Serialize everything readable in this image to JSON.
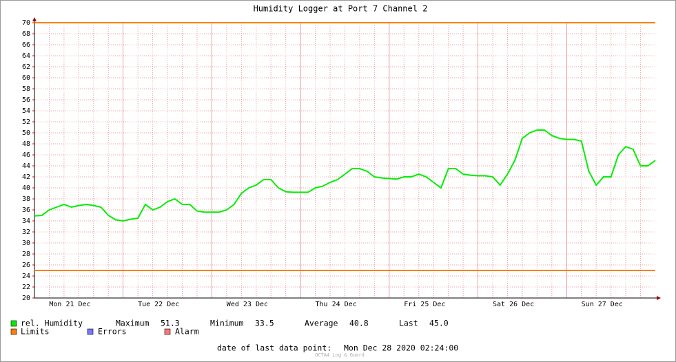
{
  "chart_data": {
    "type": "line",
    "title": "Humidity Logger at Port 7 Channel 2",
    "xlim": [
      0,
      168
    ],
    "xticks": [
      {
        "value": 9.6,
        "label": "Mon 21 Dec"
      },
      {
        "value": 33.6,
        "label": "Tue 22 Dec"
      },
      {
        "value": 57.6,
        "label": "Wed 23 Dec"
      },
      {
        "value": 81.6,
        "label": "Thu 24 Dec"
      },
      {
        "value": 105.6,
        "label": "Fri 25 Dec"
      },
      {
        "value": 129.6,
        "label": "Sat 26 Dec"
      },
      {
        "value": 153.6,
        "label": "Sun 27 Dec"
      }
    ],
    "ylim": [
      20,
      70
    ],
    "yticks": [
      20,
      22,
      24,
      26,
      28,
      30,
      32,
      34,
      36,
      38,
      40,
      42,
      44,
      46,
      48,
      50,
      52,
      54,
      56,
      58,
      60,
      62,
      64,
      66,
      68,
      70
    ],
    "grid": true,
    "series": [
      {
        "name": "rel. Humidity",
        "color": "#00ee00",
        "x": [
          0,
          2,
          4,
          6,
          8,
          10,
          12,
          14,
          16,
          18,
          20,
          22,
          24,
          26,
          28,
          30,
          32,
          34,
          36,
          38,
          40,
          42,
          44,
          46,
          48,
          50,
          52,
          54,
          56,
          58,
          60,
          62,
          64,
          66,
          68,
          70,
          72,
          74,
          76,
          78,
          80,
          82,
          84,
          86,
          88,
          90,
          92,
          94,
          96,
          98,
          100,
          102,
          104,
          106,
          108,
          110,
          112,
          114,
          116,
          118,
          120,
          122,
          124,
          126,
          128,
          130,
          132,
          134,
          136,
          138,
          140,
          142,
          144,
          146,
          148,
          150,
          152,
          154,
          156,
          158,
          160,
          162,
          164,
          166,
          168
        ],
        "values": [
          34.9,
          35.0,
          36.0,
          36.5,
          37.0,
          36.5,
          36.8,
          37.0,
          36.8,
          36.5,
          35.0,
          34.2,
          34.0,
          34.3,
          34.5,
          37.0,
          36.0,
          36.5,
          37.5,
          38.0,
          37.0,
          37.0,
          35.8,
          35.6,
          35.6,
          35.6,
          36.0,
          37.0,
          39.0,
          40.0,
          40.5,
          41.5,
          41.5,
          40.0,
          39.3,
          39.2,
          39.2,
          39.2,
          40.0,
          40.3,
          41.0,
          41.5,
          42.5,
          43.5,
          43.5,
          43.0,
          42.0,
          41.8,
          41.7,
          41.6,
          42.0,
          42.0,
          42.5,
          42.0,
          41.0,
          40.0,
          43.5,
          43.5,
          42.5,
          42.3,
          42.2,
          42.2,
          42.0,
          40.5,
          42.5,
          45.0,
          49.0,
          50.0,
          50.5,
          50.5,
          49.5,
          49.0,
          48.8,
          48.8,
          48.5,
          43.0,
          40.5,
          42.0,
          42.0,
          46.0,
          47.5,
          47.0,
          44.0,
          44.0,
          45.0
        ]
      }
    ],
    "limits": {
      "name": "Limits",
      "color": "#ff7f00",
      "values": [
        70,
        25
      ]
    },
    "legend_extra": [
      {
        "name": "Errors",
        "color": "#7777ff"
      },
      {
        "name": "Alarm",
        "color": "#ff7777"
      }
    ],
    "stats": [
      {
        "label": "Maximum",
        "value": 51.3
      },
      {
        "label": "Minimum",
        "value": 33.5
      },
      {
        "label": "Average",
        "value": 40.8
      },
      {
        "label": "Last",
        "value": {
          "value": 45,
          "label": "45.0"
        }
      }
    ],
    "footer": {
      "label": "date of last data point:",
      "value": "Mon Dec 28 2020 02:24:00"
    },
    "watermark": "OCTA4 Log & Guard"
  }
}
